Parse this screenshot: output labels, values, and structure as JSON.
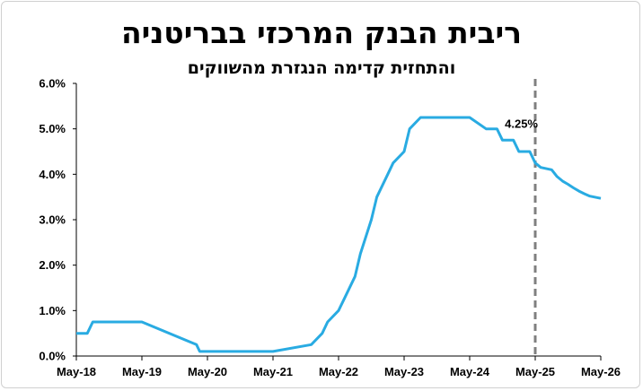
{
  "chart_data": {
    "type": "line",
    "title": "ריבית הבנק המרכזי בבריטניה",
    "subtitle": "והתחזית קדימה הנגזרת מהשווקים",
    "x_tick_labels": [
      "May-18",
      "May-19",
      "May-20",
      "May-21",
      "May-22",
      "May-23",
      "May-24",
      "May-25",
      "May-26"
    ],
    "x_range": [
      "2018-05",
      "2026-05"
    ],
    "y_tick_labels": [
      "0.0%",
      "1.0%",
      "2.0%",
      "3.0%",
      "4.0%",
      "5.0%",
      "6.0%"
    ],
    "ylim": [
      0,
      6
    ],
    "grid": false,
    "line_color": "#29abe2",
    "marker_color": "#808080",
    "vertical_marker": "2025-05",
    "annotation": {
      "text": "4.25%",
      "x": "2025-05",
      "y": 4.25
    },
    "series": [
      {
        "x": [
          "2018-05",
          "2018-07",
          "2018-08",
          "2019-05",
          "2020-03",
          "2020-03-19",
          "2021-05",
          "2021-12",
          "2022-02",
          "2022-03",
          "2022-05",
          "2022-06",
          "2022-08",
          "2022-09",
          "2022-11",
          "2022-12",
          "2023-02",
          "2023-03",
          "2023-05",
          "2023-06",
          "2023-08",
          "2023-12",
          "2024-05",
          "2024-08",
          "2024-10",
          "2024-11",
          "2025-01",
          "2025-02",
          "2025-04",
          "2025-05",
          "2025-06",
          "2025-08",
          "2025-09",
          "2025-10",
          "2025-11",
          "2025-12",
          "2026-01",
          "2026-02",
          "2026-03",
          "2026-05"
        ],
        "values": [
          0.5,
          0.5,
          0.75,
          0.75,
          0.25,
          0.1,
          0.1,
          0.25,
          0.5,
          0.75,
          1.0,
          1.25,
          1.75,
          2.25,
          3.0,
          3.5,
          4.0,
          4.25,
          4.5,
          5.0,
          5.25,
          5.25,
          5.25,
          5.0,
          5.0,
          4.75,
          4.75,
          4.5,
          4.5,
          4.25,
          4.15,
          4.1,
          3.95,
          3.85,
          3.78,
          3.7,
          3.63,
          3.57,
          3.52,
          3.47
        ]
      }
    ]
  }
}
